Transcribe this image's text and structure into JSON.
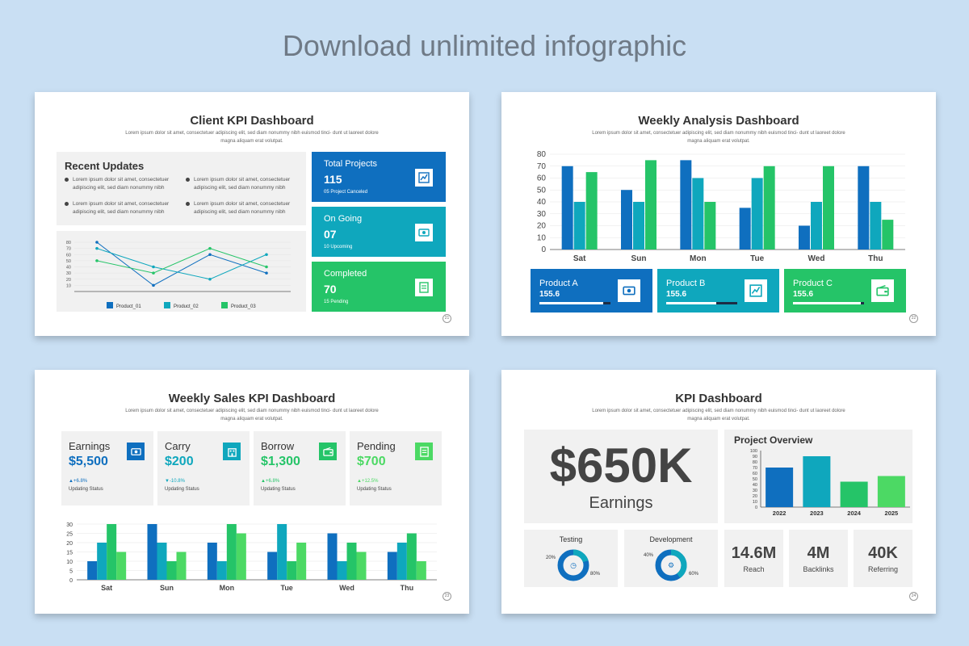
{
  "headline": "Download unlimited infographic",
  "lorem": "Lorem ipsum dolor sit amet, consectetuer adipiscing elit, sed diam nonummy nibh euismod tinci- dunt ut laoreet dolore magna aliquam erat volutpat.",
  "colors": {
    "blue": "#0f6fbf",
    "teal": "#0fa7bd",
    "green": "#25c468",
    "lime": "#4cd964"
  },
  "slide1": {
    "title": "Client KPI Dashboard",
    "page": "21",
    "recent": {
      "title": "Recent Updates",
      "items": [
        "Lorem ipsum dolor sit amet, consectetuer adipiscing elit, sed diam nonummy nibh",
        "Lorem ipsum dolor sit amet, consectetuer adipiscing elit, sed diam nonummy nibh",
        "Lorem ipsum dolor sit amet, consectetuer adipiscing elit, sed diam nonummy nibh",
        "Lorem ipsum dolor sit amet, consectetuer adipiscing elit, sed diam nonummy nibh"
      ]
    },
    "cards": [
      {
        "title": "Total Projects",
        "value": "115",
        "note": "05 Project Canceled",
        "icon": "chart-icon"
      },
      {
        "title": "On Going",
        "value": "07",
        "note": "10 Upcoming",
        "icon": "money-icon"
      },
      {
        "title": "Completed",
        "value": "70",
        "note": "15 Pending",
        "icon": "document-icon"
      }
    ]
  },
  "slide2": {
    "title": "Weekly Analysis Dashboard",
    "page": "22",
    "products": [
      {
        "title": "Product A",
        "value": "155.6",
        "level": 0.9,
        "icon": "money-icon"
      },
      {
        "title": "Product B",
        "value": "155.6",
        "level": 0.7,
        "icon": "chart-icon"
      },
      {
        "title": "Product C",
        "value": "155.6",
        "level": 0.95,
        "icon": "wallet-icon"
      }
    ]
  },
  "slide3": {
    "title": "Weekly Sales KPI Dashboard",
    "page": "23",
    "cards": [
      {
        "title": "Earnings",
        "value": "$5,500",
        "change": "▲+6.8%",
        "status": "Updating Status",
        "icon": "money-icon"
      },
      {
        "title": "Carry",
        "value": "$200",
        "change": "▼-10.8%",
        "status": "Updating Status",
        "icon": "building-icon"
      },
      {
        "title": "Borrow",
        "value": "$1,300",
        "change": "▲+6.8%",
        "status": "Updating Status",
        "icon": "wallet-icon"
      },
      {
        "title": "Pending",
        "value": "$700",
        "change": "▲+12.5%",
        "status": "Updating Status",
        "icon": "document-icon"
      }
    ]
  },
  "slide4": {
    "title": "KPI Dashboard",
    "page": "24",
    "earnings_value": "$650K",
    "earnings_label": "Earnings",
    "overview_title": "Project Overview",
    "testing": {
      "title": "Testing",
      "left_pct": "20%",
      "right_pct": "80%",
      "share": 0.2
    },
    "development": {
      "title": "Development",
      "left_pct": "40%",
      "right_pct": "60%",
      "share": 0.4
    },
    "stats": [
      {
        "value": "14.6M",
        "label": "Reach"
      },
      {
        "value": "4M",
        "label": "Backlinks"
      },
      {
        "value": "40K",
        "label": "Referring"
      }
    ]
  },
  "chart_data": [
    {
      "id": "client-line",
      "type": "line",
      "x": [
        1,
        2,
        3,
        4
      ],
      "ylim": [
        0,
        80
      ],
      "yticks": [
        10,
        20,
        30,
        40,
        50,
        60,
        70,
        80
      ],
      "series": [
        {
          "name": "Product_01",
          "values": [
            80,
            10,
            60,
            30
          ]
        },
        {
          "name": "Product_02",
          "values": [
            70,
            40,
            20,
            60
          ]
        },
        {
          "name": "Product_03",
          "values": [
            50,
            30,
            70,
            40
          ]
        }
      ],
      "legend": "bottom"
    },
    {
      "id": "weekly-analysis",
      "type": "bar",
      "categories": [
        "Sat",
        "Sun",
        "Mon",
        "Tue",
        "Wed",
        "Thu"
      ],
      "ylim": [
        0,
        80
      ],
      "yticks": [
        0,
        10,
        20,
        30,
        40,
        50,
        60,
        70,
        80
      ],
      "series": [
        {
          "values": [
            70,
            50,
            75,
            35,
            20,
            70
          ]
        },
        {
          "values": [
            40,
            40,
            60,
            60,
            40,
            40
          ]
        },
        {
          "values": [
            65,
            75,
            40,
            70,
            70,
            25
          ]
        }
      ]
    },
    {
      "id": "weekly-sales",
      "type": "bar",
      "categories": [
        "Sat",
        "Sun",
        "Mon",
        "Tue",
        "Wed",
        "Thu"
      ],
      "ylim": [
        0,
        30
      ],
      "yticks": [
        0,
        5,
        10,
        15,
        20,
        25,
        30
      ],
      "series": [
        {
          "values": [
            10,
            30,
            20,
            15,
            25,
            15
          ]
        },
        {
          "values": [
            20,
            20,
            10,
            30,
            10,
            20
          ]
        },
        {
          "values": [
            30,
            10,
            30,
            10,
            20,
            25
          ]
        },
        {
          "values": [
            15,
            15,
            25,
            20,
            15,
            10
          ]
        }
      ]
    },
    {
      "id": "project-overview",
      "type": "bar",
      "categories": [
        "2022",
        "2023",
        "2024",
        "2025"
      ],
      "values": [
        70,
        90,
        45,
        55
      ],
      "ylim": [
        0,
        100
      ],
      "yticks": [
        0,
        10,
        20,
        30,
        40,
        50,
        60,
        70,
        80,
        90,
        100
      ]
    }
  ]
}
